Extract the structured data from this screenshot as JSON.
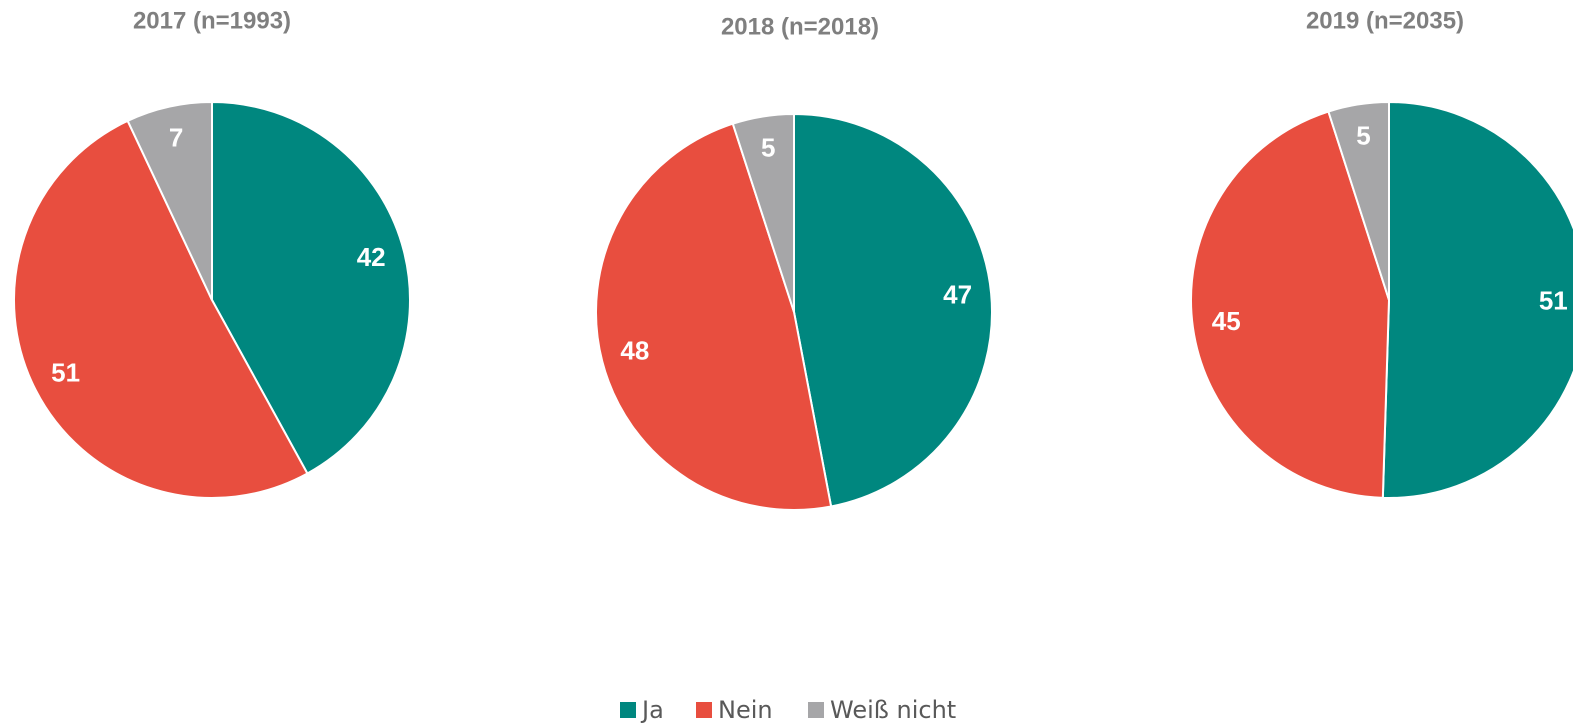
{
  "legend": {
    "labels": [
      "Ja",
      "Nein",
      "Weiß nicht"
    ],
    "colors": [
      "#00877f",
      "#e84e3f",
      "#a6a6a8"
    ]
  },
  "chart_data": [
    {
      "type": "pie",
      "title": "2017 (n=1993)",
      "values": [
        42,
        51,
        7
      ]
    },
    {
      "type": "pie",
      "title": "2018 (n=2018)",
      "values": [
        47,
        48,
        5
      ]
    },
    {
      "type": "pie",
      "title": "2019 (n=2035)",
      "values": [
        51,
        45,
        5
      ]
    }
  ]
}
